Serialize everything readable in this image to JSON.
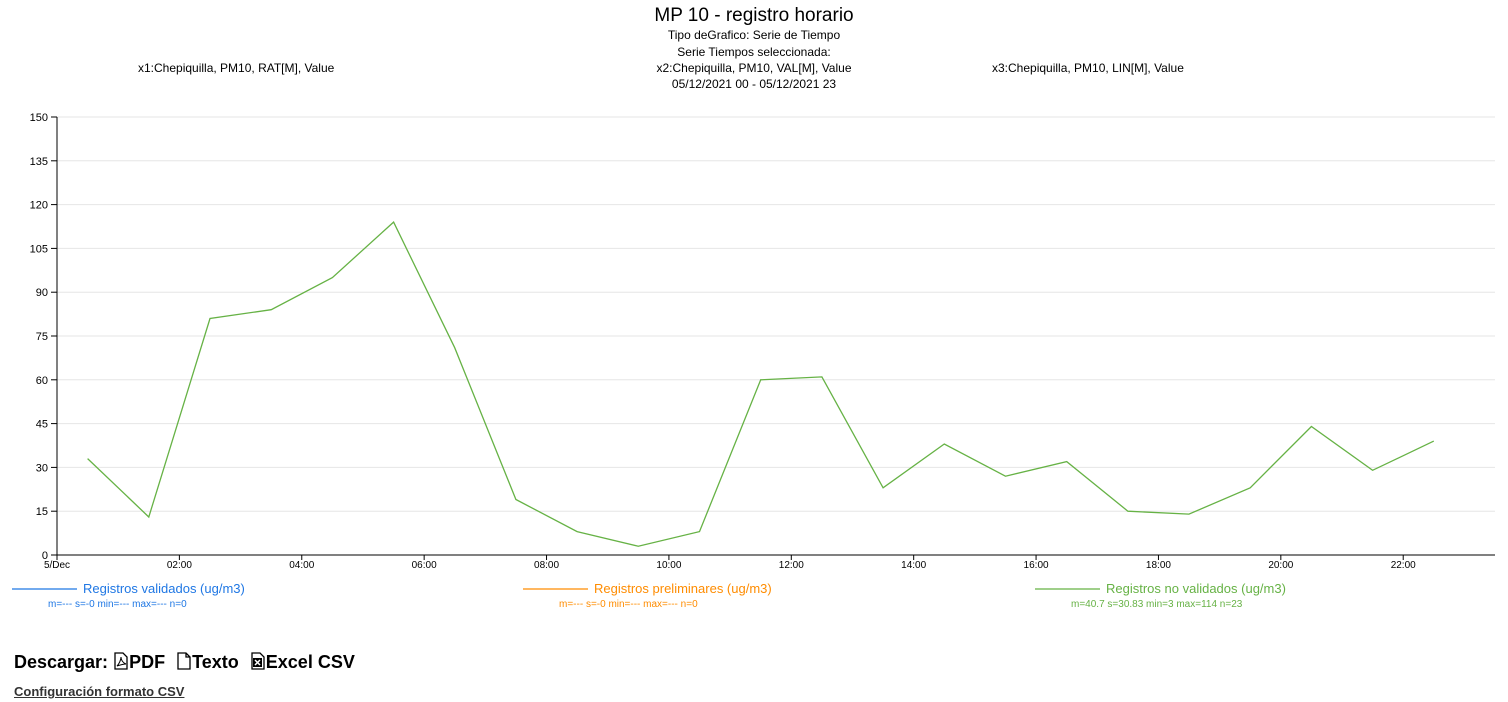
{
  "header": {
    "title": "MP 10 - registro horario",
    "chart_type_label": "Tipo deGrafico: Serie de Tiempo",
    "series_selected_label": "Serie Tiempos seleccionada:",
    "x1": "x1:Chepiquilla, PM10, RAT[M], Value",
    "x2": "x2:Chepiquilla, PM10, VAL[M], Value",
    "x3": "x3:Chepiquilla, PM10, LIN[M], Value",
    "range": "05/12/2021 00 - 05/12/2021 23"
  },
  "chart_data": {
    "type": "line",
    "title": "MP 10 - registro horario",
    "xlabel": "",
    "ylabel": "",
    "ylim": [
      0,
      150
    ],
    "y_ticks": [
      0,
      15,
      30,
      45,
      60,
      75,
      90,
      105,
      120,
      135,
      150
    ],
    "x_ticks": [
      {
        "h": 0,
        "label": "5/Dec"
      },
      {
        "h": 2,
        "label": "02:00"
      },
      {
        "h": 4,
        "label": "04:00"
      },
      {
        "h": 6,
        "label": "06:00"
      },
      {
        "h": 8,
        "label": "08:00"
      },
      {
        "h": 10,
        "label": "10:00"
      },
      {
        "h": 12,
        "label": "12:00"
      },
      {
        "h": 14,
        "label": "14:00"
      },
      {
        "h": 16,
        "label": "16:00"
      },
      {
        "h": 18,
        "label": "18:00"
      },
      {
        "h": 20,
        "label": "20:00"
      },
      {
        "h": 22,
        "label": "22:00"
      }
    ],
    "xlim": [
      0,
      23.5
    ],
    "grid": true,
    "series": [
      {
        "name": "Registros validados (ug/m3)",
        "stats": "m=--- s=-0 min=--- max=--- n=0",
        "color": "#1f77e4",
        "x": [],
        "values": []
      },
      {
        "name": "Registros preliminares (ug/m3)",
        "stats": "m=--- s=-0 min=--- max=--- n=0",
        "color": "#ff8c00",
        "x": [],
        "values": []
      },
      {
        "name": "Registros no validados (ug/m3)",
        "stats": "m=40.7 s=30.83 min=3 max=114 n=23",
        "color": "#66b245",
        "x": [
          0.5,
          1.5,
          2.5,
          3.5,
          4.5,
          5.5,
          6.5,
          7.5,
          8.5,
          9.5,
          10.5,
          11.5,
          12.5,
          13.5,
          14.5,
          15.5,
          16.5,
          17.5,
          18.5,
          19.5,
          20.5,
          21.5,
          22.5
        ],
        "values": [
          33,
          13,
          81,
          84,
          95,
          114,
          71,
          19,
          8,
          3,
          8,
          60,
          61,
          23,
          38,
          27,
          32,
          15,
          14,
          23,
          44,
          29,
          39
        ]
      }
    ]
  },
  "downloads": {
    "label": "Descargar:",
    "pdf": "PDF",
    "texto": "Texto",
    "excel": "Excel CSV"
  },
  "csv_config_link": "Configuración formato CSV"
}
